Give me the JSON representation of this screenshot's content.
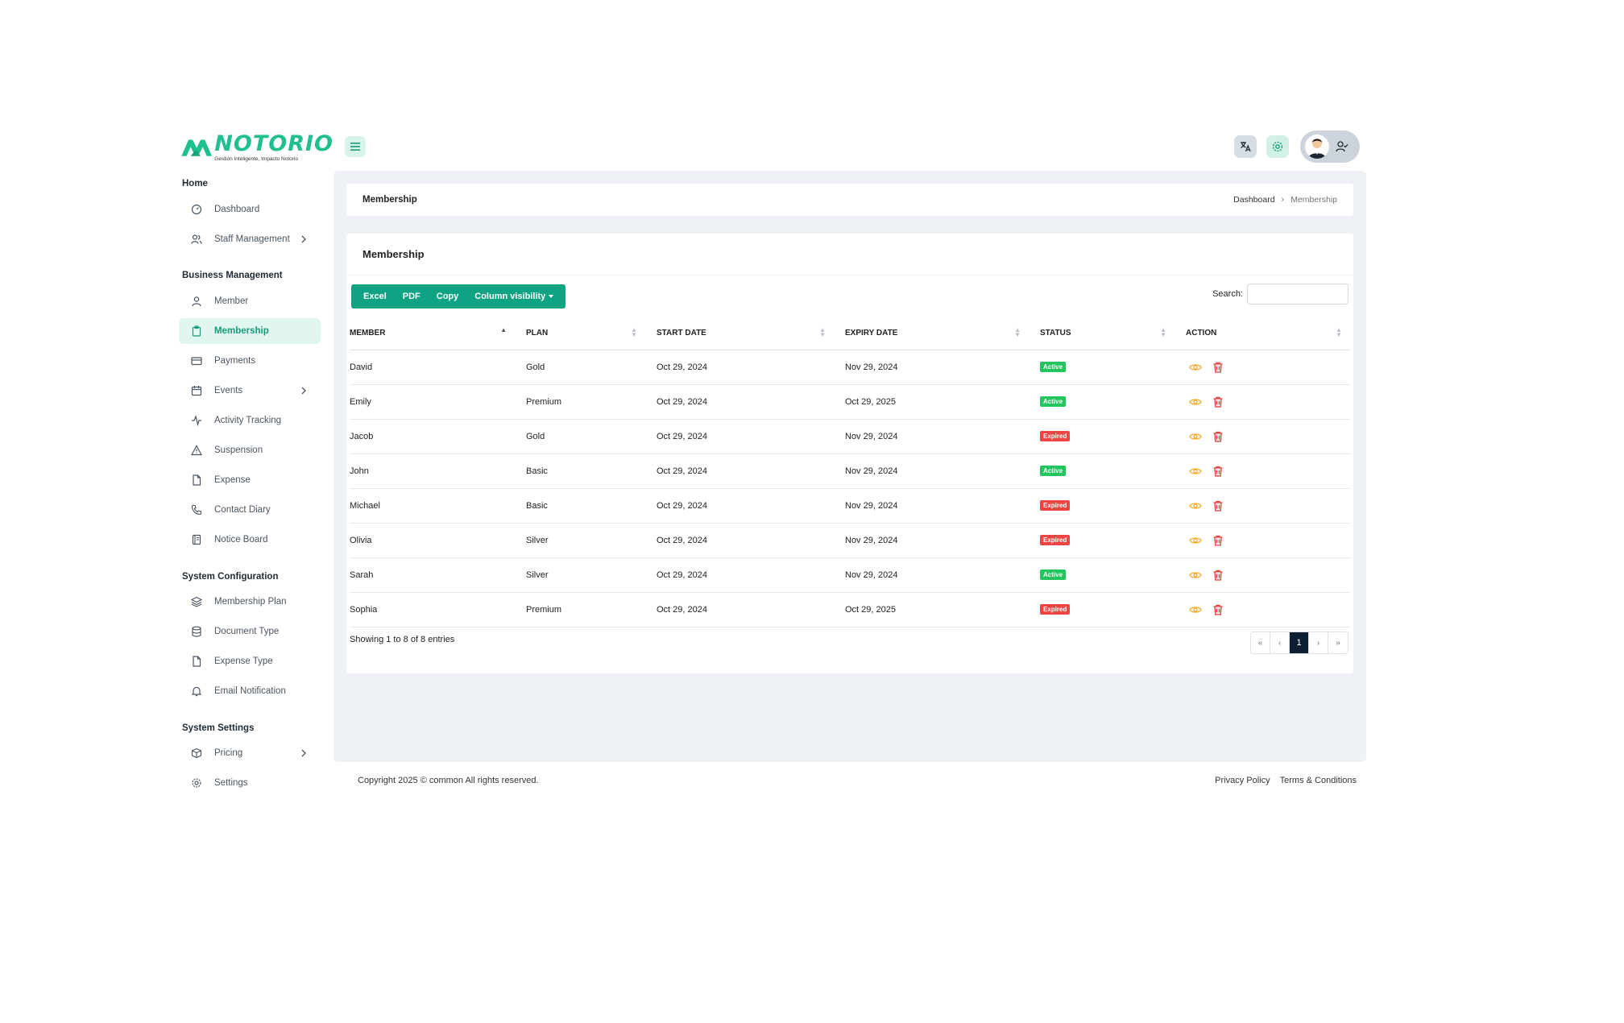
{
  "brand": {
    "name": "NOTORIO",
    "tagline": "Gestión Inteligente, Impacto Notorio",
    "accent": "#1fbf8f"
  },
  "sidebar": {
    "sections": [
      {
        "title": "Home",
        "items": [
          {
            "label": "Dashboard",
            "icon": "dashboard-icon"
          },
          {
            "label": "Staff Management",
            "icon": "users-icon",
            "submenu": true
          }
        ]
      },
      {
        "title": "Business Management",
        "items": [
          {
            "label": "Member",
            "icon": "user-icon"
          },
          {
            "label": "Membership",
            "icon": "clipboard-icon",
            "active": true
          },
          {
            "label": "Payments",
            "icon": "credit-card-icon"
          },
          {
            "label": "Events",
            "icon": "calendar-icon",
            "submenu": true
          },
          {
            "label": "Activity Tracking",
            "icon": "activity-icon"
          },
          {
            "label": "Suspension",
            "icon": "warning-icon"
          },
          {
            "label": "Expense",
            "icon": "file-icon"
          },
          {
            "label": "Contact Diary",
            "icon": "phone-icon"
          },
          {
            "label": "Notice Board",
            "icon": "notebook-icon"
          }
        ]
      },
      {
        "title": "System Configuration",
        "items": [
          {
            "label": "Membership Plan",
            "icon": "layers-icon"
          },
          {
            "label": "Document Type",
            "icon": "database-icon"
          },
          {
            "label": "Expense Type",
            "icon": "file-icon"
          },
          {
            "label": "Email Notification",
            "icon": "bell-icon"
          }
        ]
      },
      {
        "title": "System Settings",
        "items": [
          {
            "label": "Pricing",
            "icon": "package-icon",
            "submenu": true
          },
          {
            "label": "Settings",
            "icon": "gear-icon"
          }
        ]
      }
    ]
  },
  "breadcrumb": {
    "title": "Membership",
    "items": [
      "Dashboard",
      "Membership"
    ]
  },
  "card": {
    "title": "Membership",
    "buttons": [
      "Excel",
      "PDF",
      "Copy",
      "Column visibility"
    ],
    "search_label": "Search:",
    "columns": [
      "MEMBER",
      "PLAN",
      "START DATE",
      "EXPIRY DATE",
      "STATUS",
      "ACTION"
    ],
    "rows": [
      {
        "member": "David",
        "plan": "Gold",
        "start": "Oct 29, 2024",
        "expiry": "Nov 29, 2024",
        "status": "Active"
      },
      {
        "member": "Emily",
        "plan": "Premium",
        "start": "Oct 29, 2024",
        "expiry": "Oct 29, 2025",
        "status": "Active"
      },
      {
        "member": "Jacob",
        "plan": "Gold",
        "start": "Oct 29, 2024",
        "expiry": "Nov 29, 2024",
        "status": "Expired"
      },
      {
        "member": "John",
        "plan": "Basic",
        "start": "Oct 29, 2024",
        "expiry": "Nov 29, 2024",
        "status": "Active"
      },
      {
        "member": "Michael",
        "plan": "Basic",
        "start": "Oct 29, 2024",
        "expiry": "Nov 29, 2024",
        "status": "Expired"
      },
      {
        "member": "Olivia",
        "plan": "Silver",
        "start": "Oct 29, 2024",
        "expiry": "Nov 29, 2024",
        "status": "Expired"
      },
      {
        "member": "Sarah",
        "plan": "Silver",
        "start": "Oct 29, 2024",
        "expiry": "Nov 29, 2024",
        "status": "Active"
      },
      {
        "member": "Sophia",
        "plan": "Premium",
        "start": "Oct 29, 2024",
        "expiry": "Oct 29, 2025",
        "status": "Expired"
      }
    ],
    "showing": "Showing 1 to 8 of 8 entries",
    "pagination": {
      "first": "«",
      "prev": "‹",
      "current": "1",
      "next": "›",
      "last": "»"
    }
  },
  "footer": {
    "copyright": "Copyright 2025 © common All rights reserved.",
    "links": [
      "Privacy Policy",
      "Terms & Conditions"
    ]
  },
  "colors": {
    "primary": "#0fa384",
    "active_badge": "#22c55e",
    "expired_badge": "#ef4444",
    "eye": "#f5a623",
    "trash": "#e53935",
    "page_active": "#0c1f33"
  }
}
